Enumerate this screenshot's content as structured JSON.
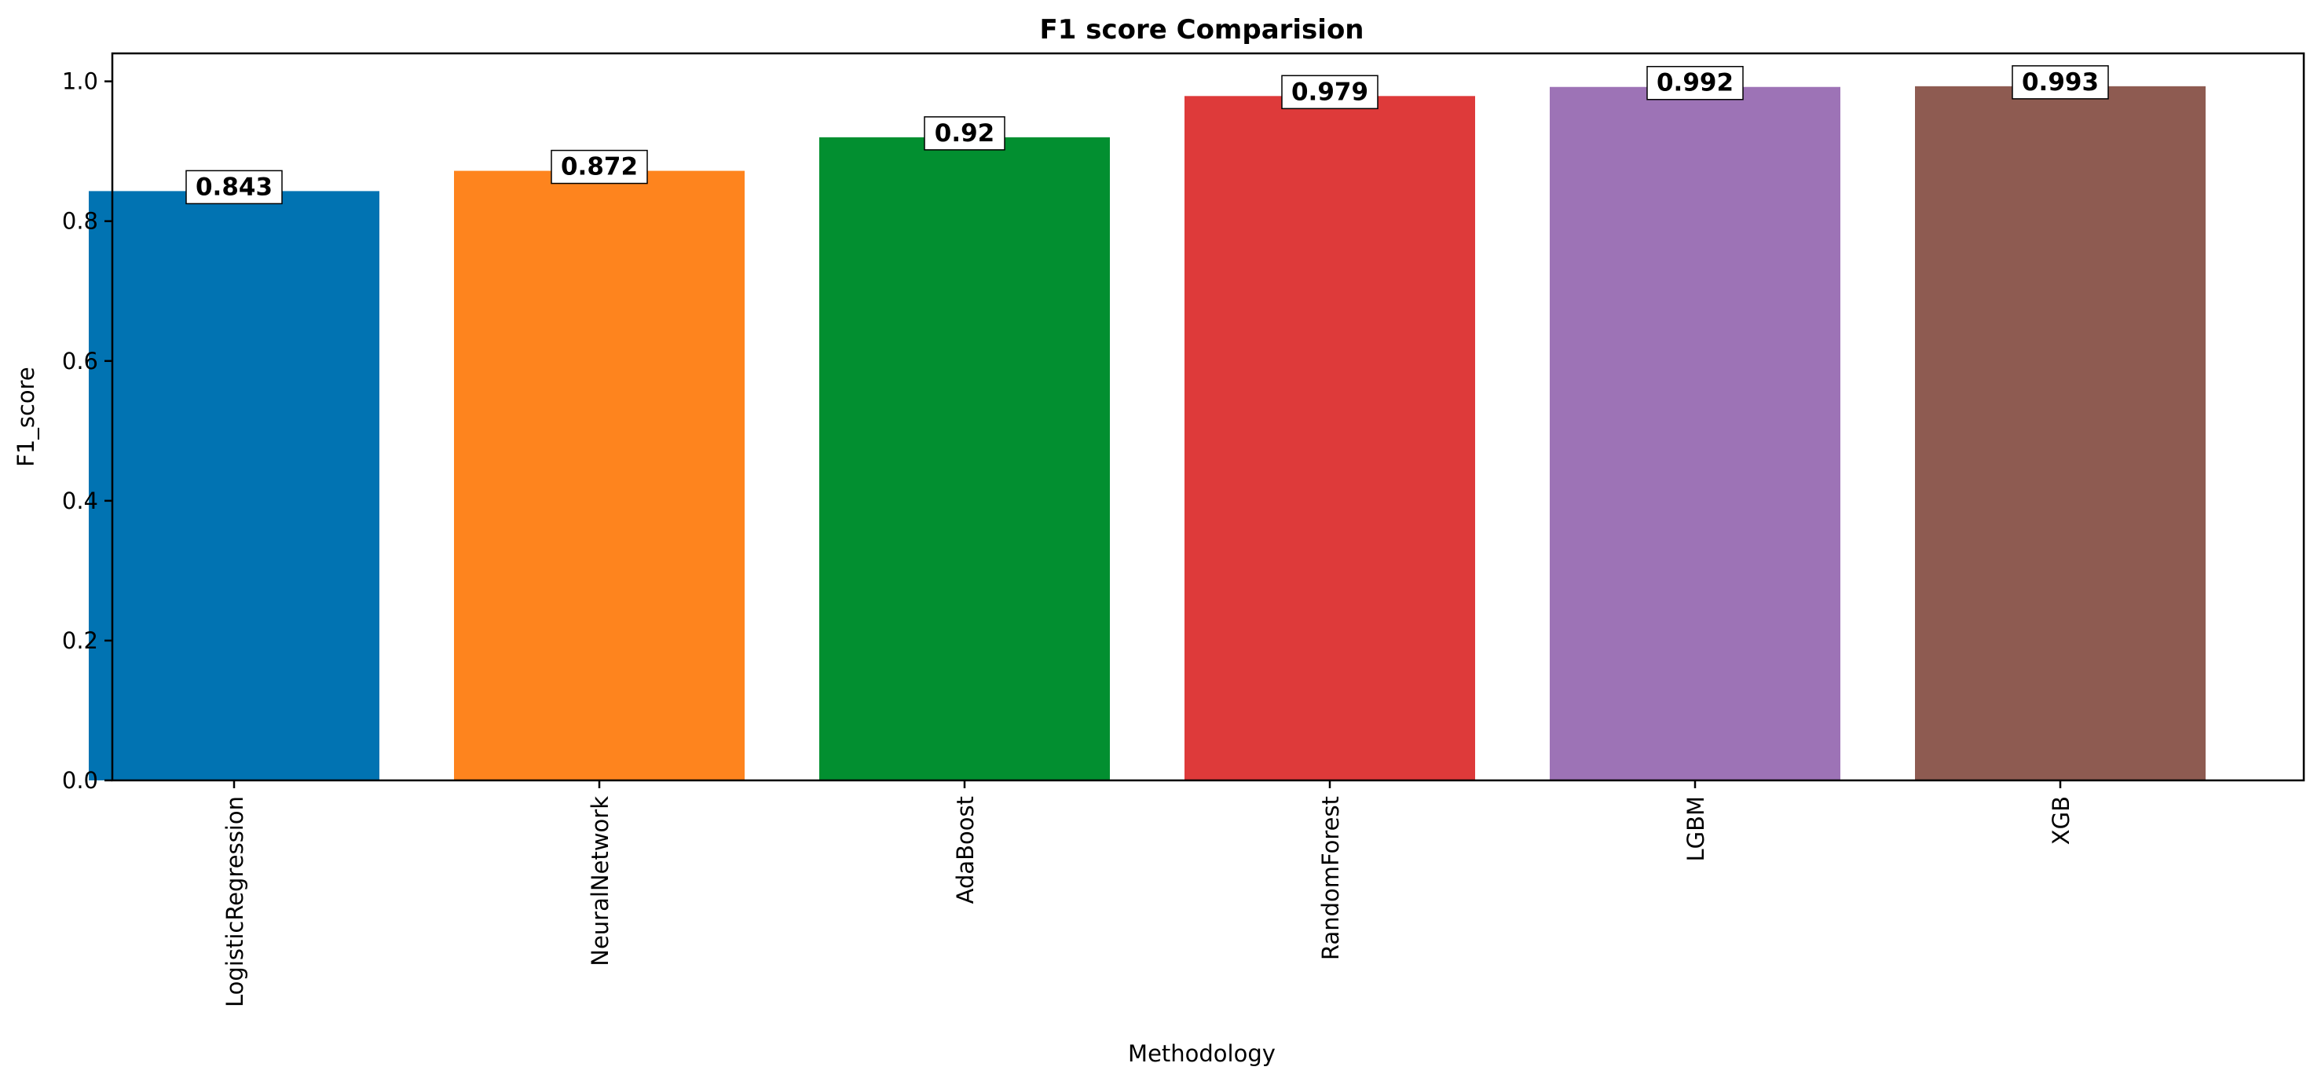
{
  "chart_data": {
    "type": "bar",
    "title": "F1 score Comparision",
    "xlabel": "Methodology",
    "ylabel": "F1_score",
    "categories": [
      "LogisticRegression",
      "NeuralNetwork",
      "AdaBoost",
      "RandomForest",
      "LGBM",
      "XGB"
    ],
    "values": [
      0.843,
      0.872,
      0.92,
      0.979,
      0.992,
      0.993
    ],
    "value_labels": [
      "0.843",
      "0.872",
      "0.92",
      "0.979",
      "0.992",
      "0.993"
    ],
    "colors": [
      "#0173b2",
      "#fe841e",
      "#028f30",
      "#de3a3a",
      "#9d73b6",
      "#8e5b51"
    ],
    "ylim": [
      0,
      1.04
    ],
    "yticks": [
      0.0,
      0.2,
      0.4,
      0.6,
      0.8,
      1.0
    ],
    "ytick_labels": [
      "0.0",
      "0.2",
      "0.4",
      "0.6",
      "0.8",
      "1.0"
    ],
    "grid": false,
    "legend": false
  }
}
